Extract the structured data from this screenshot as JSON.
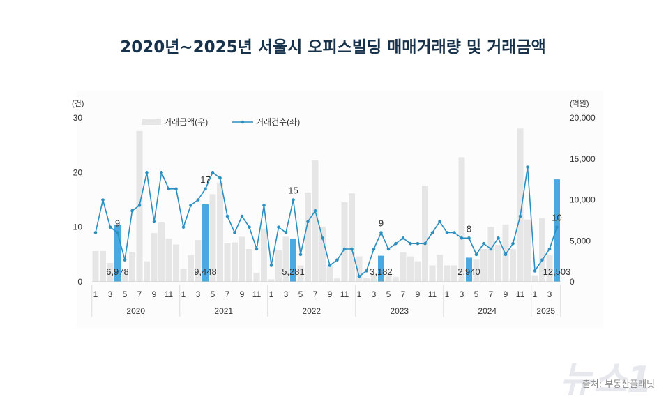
{
  "title": "2020년~2025년 서울시 오피스빌딩 매매거래량 및 거래금액",
  "watermark": "뉴스1",
  "source": "출처: 부동산플래닛",
  "colors": {
    "bar": "#e6e6e6",
    "highlight_bar": "#4aa9e0",
    "line": "#2b8fc0",
    "title": "#17324a"
  },
  "chart_data": {
    "type": "bar+line",
    "left_axis": {
      "unit": "(건)",
      "range": [
        0,
        30
      ],
      "ticks": [
        0,
        10,
        20,
        30
      ]
    },
    "right_axis": {
      "unit": "(억원)",
      "range": [
        0,
        20000
      ],
      "ticks": [
        "0",
        "5,000",
        "10,000",
        "15,000",
        "20,000"
      ]
    },
    "legend": [
      "거래금액(우)",
      "거래건수(좌)"
    ],
    "legend_placement": "top",
    "grid": false,
    "years": [
      "2020",
      "2021",
      "2022",
      "2023",
      "2024",
      "2025"
    ],
    "months_per_year": [
      12,
      12,
      12,
      12,
      12,
      4
    ],
    "month_tick_labels": [
      "1",
      "3",
      "5",
      "7",
      "9",
      "11"
    ],
    "series": [
      {
        "name": "거래금액(우)",
        "axis": "right",
        "kind": "bar",
        "values": [
          3750,
          3750,
          2300,
          6978,
          1500,
          3600,
          18400,
          2500,
          5950,
          7250,
          5250,
          4550,
          1600,
          3250,
          5100,
          9448,
          10700,
          12100,
          4700,
          4800,
          5500,
          4000,
          1100,
          6500,
          300,
          3850,
          5500,
          5281,
          2000,
          10900,
          14800,
          6700,
          2000,
          400,
          9700,
          10800,
          3100,
          500,
          900,
          3182,
          1200,
          600,
          3600,
          3100,
          2500,
          11700,
          2000,
          3300,
          2000,
          2000,
          15200,
          2940,
          2700,
          4000,
          6700,
          4500,
          7000,
          4000,
          18700,
          7600,
          800,
          7800,
          3300,
          12503
        ]
      },
      {
        "name": "거래건수(좌)",
        "axis": "left",
        "kind": "line",
        "values": [
          9,
          15,
          10,
          9,
          4,
          13,
          14,
          20,
          11,
          20,
          17,
          17,
          10,
          14,
          15,
          17,
          20,
          19,
          12,
          9,
          12,
          10,
          6,
          14,
          3,
          10,
          9,
          15,
          5,
          11,
          13,
          8,
          3,
          4,
          6,
          6,
          1,
          2,
          6,
          9,
          6,
          7,
          8,
          7,
          7,
          7,
          9,
          11,
          9,
          9,
          8,
          8,
          5,
          7,
          6,
          8,
          5,
          7,
          12,
          21,
          2,
          4,
          6,
          10
        ]
      }
    ],
    "highlighted": [
      {
        "index": 3,
        "count_label": "9",
        "amount_label": "6,978"
      },
      {
        "index": 15,
        "count_label": "17",
        "amount_label": "9,448"
      },
      {
        "index": 27,
        "count_label": "15",
        "amount_label": "5,281"
      },
      {
        "index": 39,
        "count_label": "9",
        "amount_label": "3,182"
      },
      {
        "index": 51,
        "count_label": "8",
        "amount_label": "2,940"
      },
      {
        "index": 63,
        "count_label": "10",
        "amount_label": "12,503"
      }
    ]
  }
}
